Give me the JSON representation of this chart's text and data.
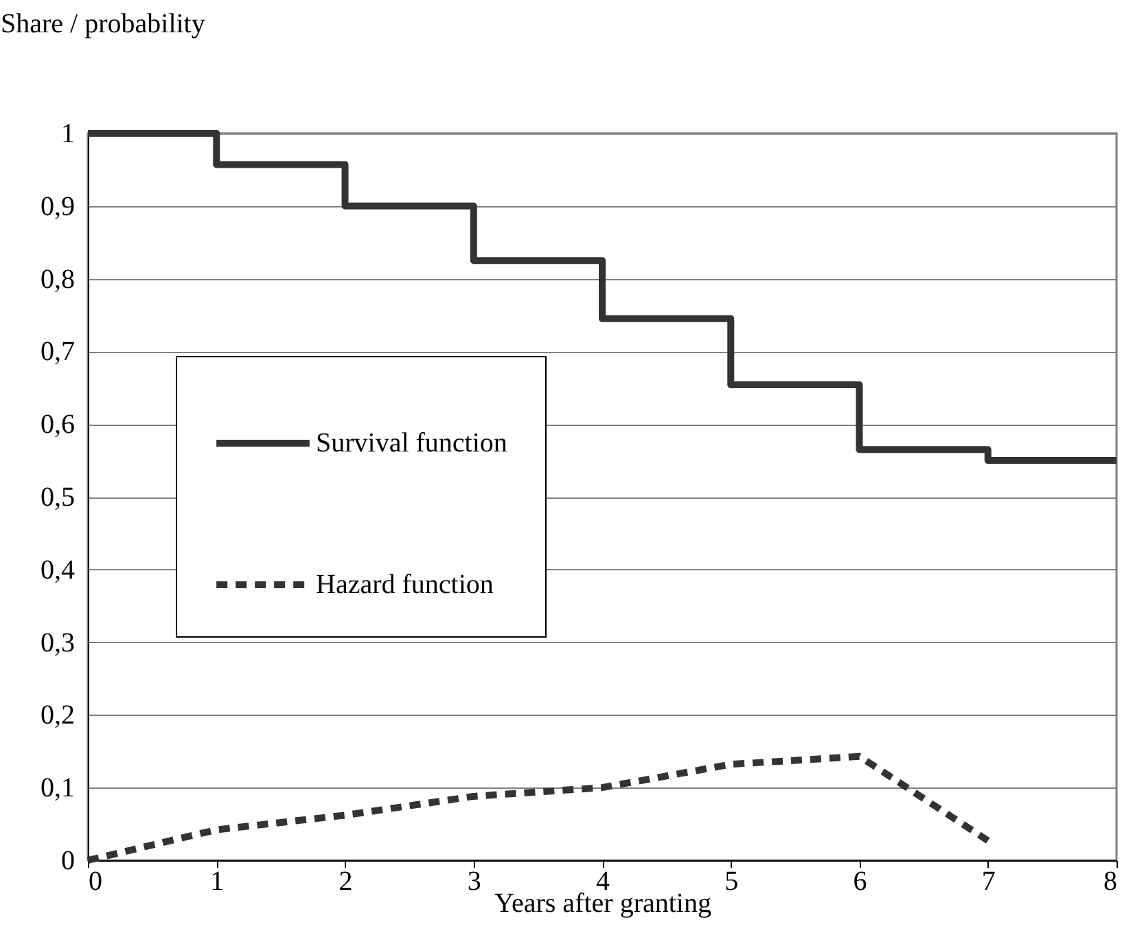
{
  "chart_data": {
    "type": "line",
    "xlabel": "Years after granting",
    "ylabel": "Share / probability",
    "xlim": [
      0,
      8
    ],
    "xticks": [
      0,
      1,
      2,
      3,
      4,
      5,
      6,
      7,
      8
    ],
    "ylim": [
      0,
      1
    ],
    "yticks": [
      {
        "value": 0,
        "label": "0"
      },
      {
        "value": 0.1,
        "label": "0,1"
      },
      {
        "value": 0.2,
        "label": "0,2"
      },
      {
        "value": 0.3,
        "label": "0,3"
      },
      {
        "value": 0.4,
        "label": "0,4"
      },
      {
        "value": 0.5,
        "label": "0,5"
      },
      {
        "value": 0.6,
        "label": "0,6"
      },
      {
        "value": 0.7,
        "label": "0,7"
      },
      {
        "value": 0.8,
        "label": "0,8"
      },
      {
        "value": 0.9,
        "label": "0,9"
      },
      {
        "value": 1,
        "label": "1"
      }
    ],
    "grid": "y",
    "legend": "left",
    "series": [
      {
        "name": "Survival function",
        "type": "step",
        "color": "#333333",
        "line_style": "solid",
        "x": [
          0,
          1,
          2,
          3,
          4,
          5,
          6,
          7,
          8
        ],
        "values": [
          1,
          0.957,
          0.9,
          0.825,
          0.745,
          0.654,
          0.565,
          0.55,
          0.55
        ]
      },
      {
        "name": "Hazard function",
        "color": "#333333",
        "line_style": "dashed",
        "x": [
          0,
          1,
          2,
          3,
          4,
          5,
          6,
          7
        ],
        "values": [
          0,
          0.042,
          0.062,
          0.088,
          0.1,
          0.132,
          0.143,
          0.027
        ]
      }
    ]
  }
}
